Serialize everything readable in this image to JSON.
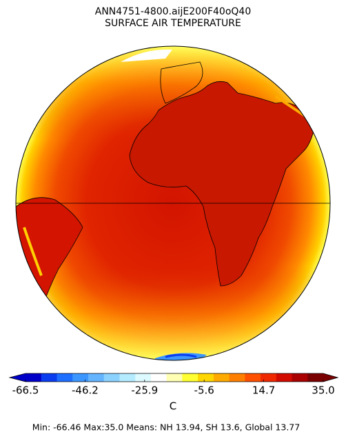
{
  "map": {
    "title": "ANN4751-4800.aijE200F40oQ40",
    "subtitle": "SURFACE AIR TEMPERATURE",
    "colorbar": {
      "clim": [
        -66.5,
        {
          "value": 35,
          "label": "35.0"
        }
      ],
      "ticks": [
        -66.5,
        -46.2,
        -25.9,
        -5.6,
        14.7,
        {
          "value": 35,
          "label": "35.0"
        }
      ],
      "colors": [
        "#0000c8",
        "#0a3cf0",
        "#1e6eff",
        "#3c96ff",
        "#64b4ff",
        "#8cd2ff",
        "#b4ebff",
        "#dcfaff",
        "#ffffff",
        "#ffffb4",
        "#ffff32",
        "#ffd700",
        "#ffaa00",
        "#ff8000",
        "#ff5000",
        "#f02800",
        "#d20a00",
        "#aa0000",
        "#7a0000"
      ],
      "unit": "C"
    },
    "footer": "Min: -66.46  Max:35.0  Means: NH 13.94,  SH 13.6, Global 13.77"
  }
}
